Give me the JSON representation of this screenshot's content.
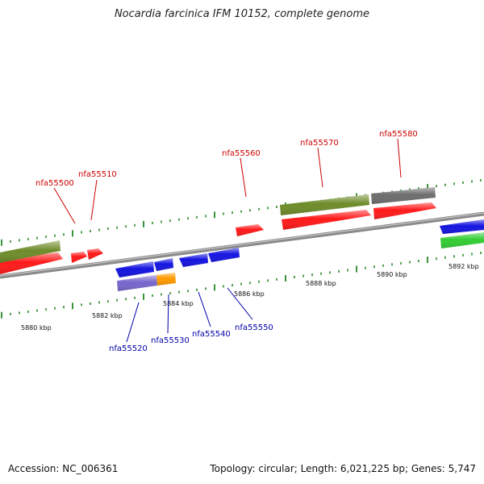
{
  "title": "Nocardia farcinica IFM 10152, complete genome",
  "footer": {
    "accession": "Accession: NC_006361",
    "summary": "Topology: circular; Length: 6,021,225 bp; Genes: 5,747"
  },
  "colors": {
    "forward_label": "#cc0000",
    "reverse_label": "#0000aa",
    "red": "#ff1a1a",
    "blue": "#1515e0",
    "olive": "#6e8c2a",
    "gray": "#6d6d6d",
    "green": "#33cc33",
    "purple": "#7766cc",
    "orange": "#ff9900",
    "tick": "#0a7a0a",
    "axis": "#8a8a8a"
  },
  "scale": {
    "unit": "kbp",
    "labels": [
      "5880 kbp",
      "5882 kbp",
      "5884 kbp",
      "5886 kbp",
      "5888 kbp",
      "5890 kbp",
      "5892 kbp"
    ]
  },
  "gene_labels": {
    "forward": [
      "nfa55500",
      "nfa55510",
      "nfa55560",
      "nfa55570",
      "nfa55580"
    ],
    "reverse": [
      "nfa55520",
      "nfa55530",
      "nfa55540",
      "nfa55550"
    ]
  }
}
